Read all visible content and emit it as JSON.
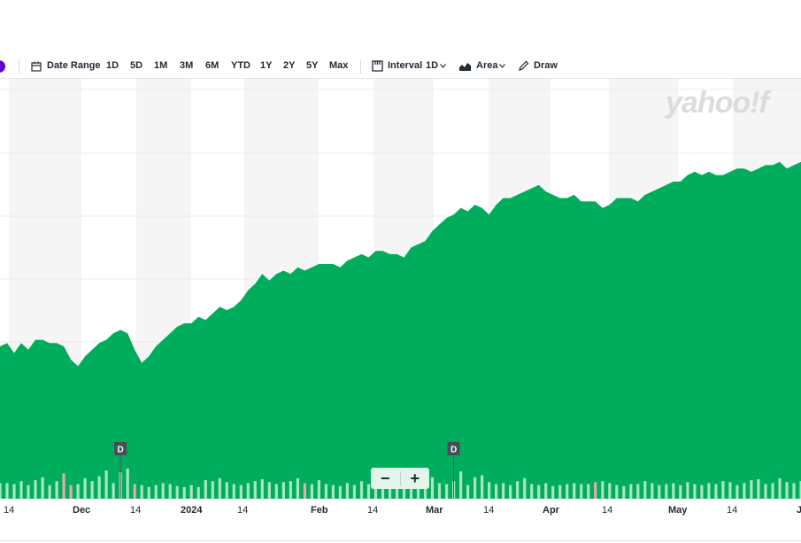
{
  "toolbar": {
    "date_range": "Date Range",
    "ranges": [
      "1D",
      "5D",
      "1M",
      "3M",
      "6M",
      "YTD",
      "1Y",
      "2Y",
      "5Y",
      "Max"
    ],
    "interval_label": "Interval",
    "interval_value": "1D",
    "chart_type_label": "Area",
    "draw_label": "Draw"
  },
  "watermark": "yahoo!f",
  "zoom": {
    "minus": "−",
    "plus": "+"
  },
  "dividend_marker": "D",
  "colors": {
    "area": "#00ad5d",
    "volume": "#a9e4c3",
    "volume_down": "#e7a9a9",
    "band": "#f5f5f5"
  },
  "chart_data": {
    "type": "area",
    "x_labels": [
      "14",
      "Dec",
      "14",
      "2024",
      "14",
      "Feb",
      "14",
      "Mar",
      "14",
      "Apr",
      "14",
      "May",
      "14",
      "J"
    ],
    "series": [
      {
        "values": [
          43,
          44,
          41,
          44,
          42,
          45,
          45,
          44,
          44,
          43,
          39,
          37,
          40,
          42,
          44,
          45,
          47,
          48,
          47,
          42,
          38,
          40,
          43,
          45,
          47,
          49,
          50,
          50,
          52,
          51,
          53,
          55,
          54,
          55,
          57,
          60,
          62,
          65,
          63,
          65,
          66,
          65,
          67,
          66,
          67,
          68,
          68,
          68,
          67,
          69,
          70,
          71,
          70,
          72,
          72,
          71,
          71,
          70,
          73,
          74,
          75,
          78,
          80,
          82,
          83,
          85,
          84,
          86,
          85,
          83,
          86,
          88,
          88,
          89,
          90,
          91,
          92,
          90,
          89,
          88,
          88,
          89,
          87,
          87,
          87,
          85,
          86,
          88,
          88,
          88,
          87,
          89,
          90,
          91,
          92,
          93,
          93,
          95,
          96,
          95,
          96,
          95,
          95,
          96,
          97,
          97,
          96,
          97,
          98,
          98,
          99,
          97,
          98,
          99
        ]
      }
    ],
    "dividend_markers": [
      17,
      64
    ],
    "volume": [
      16,
      16,
      15,
      18,
      14,
      19,
      22,
      14,
      18,
      26,
      14,
      15,
      21,
      18,
      23,
      29,
      16,
      27,
      31,
      15,
      14,
      12,
      14,
      16,
      15,
      13,
      12,
      14,
      12,
      19,
      18,
      21,
      17,
      15,
      14,
      16,
      18,
      20,
      17,
      15,
      17,
      18,
      21,
      16,
      15,
      19,
      15,
      14,
      13,
      16,
      14,
      18,
      15,
      14,
      16,
      20,
      15,
      14,
      15,
      17,
      19,
      22,
      16,
      15,
      18,
      28,
      14,
      22,
      24,
      17,
      15,
      16,
      14,
      18,
      21,
      15,
      14,
      16,
      13,
      14,
      15,
      16,
      15,
      15,
      17,
      18,
      16,
      14,
      13,
      15,
      15,
      18,
      16,
      14,
      15,
      16,
      14,
      17,
      15,
      14,
      16,
      15,
      18,
      17,
      14,
      16,
      19,
      20,
      15,
      16,
      21,
      17,
      16,
      18
    ],
    "down_days": [
      9,
      10,
      19,
      43,
      84
    ]
  }
}
